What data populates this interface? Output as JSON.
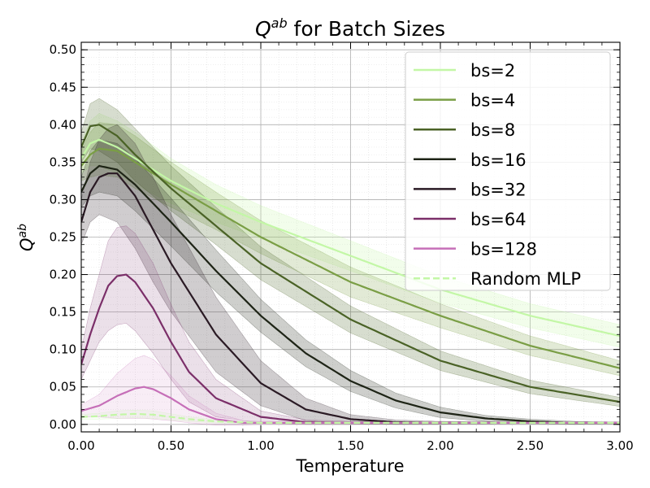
{
  "chart_data": {
    "type": "line",
    "title": {
      "main": "Q",
      "sup": "ab",
      "rest": " for Batch Sizes"
    },
    "xlabel": "Temperature",
    "ylabel": {
      "main": "Q",
      "sup": "ab"
    },
    "xlim": [
      0,
      3.0
    ],
    "ylim": [
      -0.01,
      0.51
    ],
    "x_ticks": [
      "0.00",
      "0.50",
      "1.00",
      "1.50",
      "2.00",
      "2.50",
      "3.00"
    ],
    "y_ticks": [
      "0.00",
      "0.05",
      "0.10",
      "0.15",
      "0.20",
      "0.25",
      "0.30",
      "0.35",
      "0.40",
      "0.45",
      "0.50"
    ],
    "grid": true,
    "legend_position": "top-right",
    "series": [
      {
        "name": "bs=2",
        "color": "#c3f7a6",
        "dashed": false,
        "band_alpha": 0.22,
        "x": [
          0,
          0.05,
          0.1,
          0.2,
          0.3,
          0.5,
          0.75,
          1.0,
          1.5,
          2.0,
          2.5,
          3.0
        ],
        "y": [
          0.355,
          0.375,
          0.38,
          0.37,
          0.355,
          0.325,
          0.295,
          0.27,
          0.225,
          0.18,
          0.145,
          0.118
        ],
        "band": [
          0.02,
          0.03,
          0.035,
          0.035,
          0.035,
          0.03,
          0.025,
          0.022,
          0.02,
          0.018,
          0.016,
          0.015
        ]
      },
      {
        "name": "bs=4",
        "color": "#7a9e45",
        "dashed": false,
        "band_alpha": 0.22,
        "x": [
          0,
          0.05,
          0.1,
          0.2,
          0.3,
          0.5,
          0.75,
          1.0,
          1.5,
          2.0,
          2.5,
          3.0
        ],
        "y": [
          0.345,
          0.36,
          0.368,
          0.365,
          0.35,
          0.32,
          0.285,
          0.25,
          0.19,
          0.145,
          0.105,
          0.075
        ],
        "band": [
          0.02,
          0.03,
          0.035,
          0.035,
          0.035,
          0.03,
          0.025,
          0.022,
          0.02,
          0.016,
          0.013,
          0.01
        ]
      },
      {
        "name": "bs=8",
        "color": "#4a6226",
        "dashed": false,
        "band_alpha": 0.22,
        "x": [
          0,
          0.05,
          0.1,
          0.2,
          0.3,
          0.5,
          0.75,
          1.0,
          1.5,
          2.0,
          2.5,
          3.0
        ],
        "y": [
          0.37,
          0.398,
          0.4,
          0.385,
          0.36,
          0.315,
          0.265,
          0.215,
          0.14,
          0.085,
          0.05,
          0.03
        ],
        "band": [
          0.02,
          0.03,
          0.035,
          0.035,
          0.035,
          0.03,
          0.025,
          0.022,
          0.018,
          0.013,
          0.009,
          0.006
        ]
      },
      {
        "name": "bs=16",
        "color": "#1e2416",
        "dashed": false,
        "band_alpha": 0.22,
        "x": [
          0,
          0.05,
          0.1,
          0.2,
          0.3,
          0.5,
          0.75,
          1.0,
          1.25,
          1.5,
          1.75,
          2.0,
          2.25,
          2.5,
          2.75,
          3.0
        ],
        "y": [
          0.31,
          0.335,
          0.345,
          0.34,
          0.32,
          0.27,
          0.205,
          0.145,
          0.095,
          0.058,
          0.032,
          0.016,
          0.008,
          0.004,
          0.002,
          0.002
        ],
        "band": [
          0.02,
          0.03,
          0.035,
          0.035,
          0.035,
          0.032,
          0.028,
          0.022,
          0.018,
          0.014,
          0.01,
          0.007,
          0.004,
          0.003,
          0.002,
          0.001
        ]
      },
      {
        "name": "bs=32",
        "color": "#2a1a24",
        "dashed": false,
        "band_alpha": 0.22,
        "x": [
          0,
          0.05,
          0.1,
          0.15,
          0.2,
          0.3,
          0.4,
          0.5,
          0.75,
          1.0,
          1.25,
          1.5,
          1.75,
          2.0,
          2.5,
          3.0
        ],
        "y": [
          0.27,
          0.31,
          0.33,
          0.335,
          0.335,
          0.305,
          0.26,
          0.215,
          0.12,
          0.055,
          0.02,
          0.007,
          0.003,
          0.002,
          0.002,
          0.002
        ],
        "band": [
          0.03,
          0.04,
          0.05,
          0.06,
          0.065,
          0.07,
          0.07,
          0.065,
          0.05,
          0.03,
          0.015,
          0.006,
          0.003,
          0.002,
          0.001,
          0.001
        ]
      },
      {
        "name": "bs=64",
        "color": "#7b2f69",
        "dashed": false,
        "band_alpha": 0.15,
        "x": [
          0,
          0.05,
          0.1,
          0.15,
          0.2,
          0.25,
          0.3,
          0.4,
          0.5,
          0.6,
          0.75,
          1.0,
          1.25,
          1.5,
          2.0,
          2.5,
          3.0
        ],
        "y": [
          0.08,
          0.12,
          0.155,
          0.185,
          0.198,
          0.2,
          0.19,
          0.155,
          0.11,
          0.07,
          0.035,
          0.01,
          0.003,
          0.002,
          0.002,
          0.002,
          0.002
        ],
        "band": [
          0.02,
          0.035,
          0.045,
          0.06,
          0.065,
          0.065,
          0.065,
          0.06,
          0.05,
          0.04,
          0.025,
          0.008,
          0.003,
          0.002,
          0.001,
          0.001,
          0.001
        ]
      },
      {
        "name": "bs=128",
        "color": "#c66fb8",
        "dashed": false,
        "band_alpha": 0.12,
        "x": [
          0,
          0.1,
          0.2,
          0.3,
          0.35,
          0.4,
          0.5,
          0.6,
          0.75,
          0.9,
          1.0,
          1.5,
          2.0,
          2.5,
          3.0
        ],
        "y": [
          0.018,
          0.025,
          0.038,
          0.048,
          0.05,
          0.047,
          0.035,
          0.02,
          0.007,
          0.002,
          0.002,
          0.002,
          0.002,
          0.002,
          0.002
        ],
        "band": [
          0.008,
          0.015,
          0.03,
          0.04,
          0.042,
          0.04,
          0.03,
          0.018,
          0.008,
          0.003,
          0.002,
          0.001,
          0.001,
          0.001,
          0.001
        ]
      },
      {
        "name": "Random MLP",
        "color": "#c3f7a6",
        "dashed": true,
        "band_alpha": 0.1,
        "x": [
          0,
          0.1,
          0.2,
          0.3,
          0.4,
          0.5,
          0.6,
          0.75,
          1.0,
          1.5,
          2.0,
          2.5,
          3.0
        ],
        "y": [
          0.01,
          0.011,
          0.013,
          0.014,
          0.013,
          0.01,
          0.007,
          0.004,
          0.002,
          0.002,
          0.002,
          0.002,
          0.002
        ],
        "band": [
          0.003,
          0.004,
          0.005,
          0.005,
          0.005,
          0.004,
          0.003,
          0.002,
          0.001,
          0.001,
          0.001,
          0.001,
          0.001
        ]
      }
    ]
  }
}
